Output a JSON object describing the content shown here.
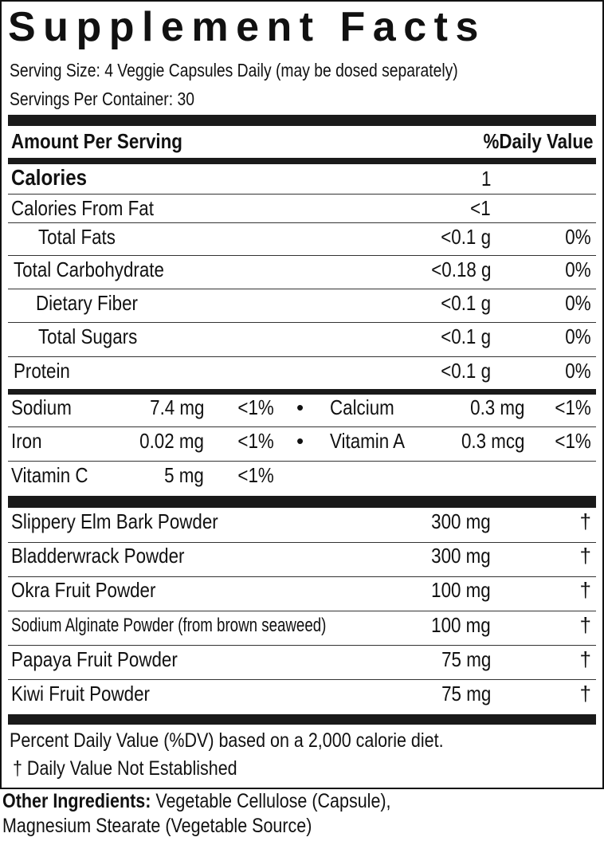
{
  "title": "Supplement Facts",
  "serving_size": "Serving Size: 4 Veggie Capsules Daily (may be dosed separately)",
  "servings_per_container": "Servings Per Container: 30",
  "header": {
    "amount": "Amount Per Serving",
    "dv": "%Daily Value"
  },
  "calories": {
    "label": "Calories",
    "amount": "1"
  },
  "calories_from_fat": {
    "label": "Calories From Fat",
    "amount": "<1"
  },
  "macros": [
    {
      "label": "Total Fats",
      "amount": "<0.1 g",
      "dv": "0%"
    },
    {
      "label": "Total Carbohydrate",
      "amount": "<0.18 g",
      "dv": "0%"
    },
    {
      "label": "Dietary Fiber",
      "amount": "<0.1 g",
      "dv": "0%"
    },
    {
      "label": "Total Sugars",
      "amount": "<0.1 g",
      "dv": "0%"
    },
    {
      "label": "Protein",
      "amount": "<0.1 g",
      "dv": "0%"
    }
  ],
  "bullet": "•",
  "minerals": [
    {
      "label": "Sodium",
      "amount": "7.4 mg",
      "dv": "<1%"
    },
    {
      "label": "Calcium",
      "amount": "0.3 mg",
      "dv": "<1%"
    },
    {
      "label": "Iron",
      "amount": "0.02 mg",
      "dv": "<1%"
    },
    {
      "label": "Vitamin A",
      "amount": "0.3 mcg",
      "dv": "<1%"
    },
    {
      "label": "Vitamin C",
      "amount": "5 mg",
      "dv": "<1%"
    }
  ],
  "ingredients": [
    {
      "label": "Slippery Elm Bark Powder",
      "amount": "300 mg",
      "dv": "†"
    },
    {
      "label": "Bladderwrack Powder",
      "amount": "300 mg",
      "dv": "†"
    },
    {
      "label": "Okra Fruit Powder",
      "amount": "100 mg",
      "dv": "†"
    },
    {
      "label": "Sodium Alginate Powder (from brown seaweed)",
      "amount": "100 mg",
      "dv": "†"
    },
    {
      "label": "Papaya Fruit Powder",
      "amount": "75 mg",
      "dv": "†"
    },
    {
      "label": "Kiwi Fruit Powder",
      "amount": "75 mg",
      "dv": "†"
    }
  ],
  "footnote_1": "Percent Daily Value (%DV) based on a 2,000 calorie diet.",
  "footnote_2": "† Daily Value Not Established",
  "other_ingredients": {
    "label": "Other Ingredients:",
    "line1": " Vegetable Cellulose (Capsule),",
    "line2": "Magnesium Stearate (Vegetable Source)"
  }
}
